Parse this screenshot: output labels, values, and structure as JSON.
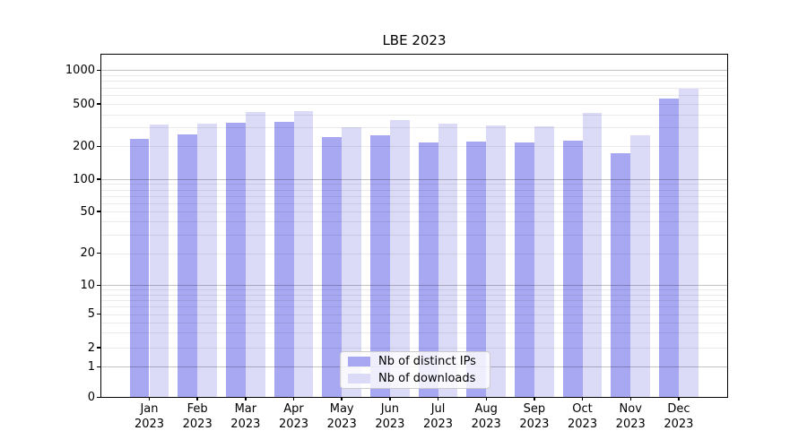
{
  "chart_data": {
    "type": "bar",
    "title": "LBE 2023",
    "categories": [
      "Jan 2023",
      "Feb 2023",
      "Mar 2023",
      "Apr 2023",
      "May 2023",
      "Jun 2023",
      "Jul 2023",
      "Aug 2023",
      "Sep 2023",
      "Oct 2023",
      "Nov 2023",
      "Dec 2023"
    ],
    "series": [
      {
        "name": "Nb of distinct IPs",
        "color": "#a8a8f2",
        "values": [
          237,
          258,
          331,
          341,
          246,
          253,
          218,
          220,
          217,
          226,
          172,
          560
        ]
      },
      {
        "name": "Nb of downloads",
        "color": "#dbdbf8",
        "values": [
          320,
          327,
          422,
          430,
          303,
          353,
          327,
          316,
          308,
          414,
          253,
          685
        ]
      }
    ],
    "y_scale": "symlog",
    "y_ticks": [
      0,
      1,
      2,
      5,
      10,
      20,
      50,
      100,
      200,
      500,
      1000
    ],
    "y_tick_labels": [
      "0",
      "1",
      "2",
      "5",
      "10",
      "20",
      "50",
      "100",
      "200",
      "500",
      "1000"
    ],
    "ylim": [
      0,
      1400
    ],
    "xlabel": "",
    "ylabel": "",
    "grid": "horizontal, major darker at powers of 10, faint minors (2-9 per decade), drawn above bars",
    "legend_position": "lower center inside plot",
    "frame": "black box around plot area"
  }
}
